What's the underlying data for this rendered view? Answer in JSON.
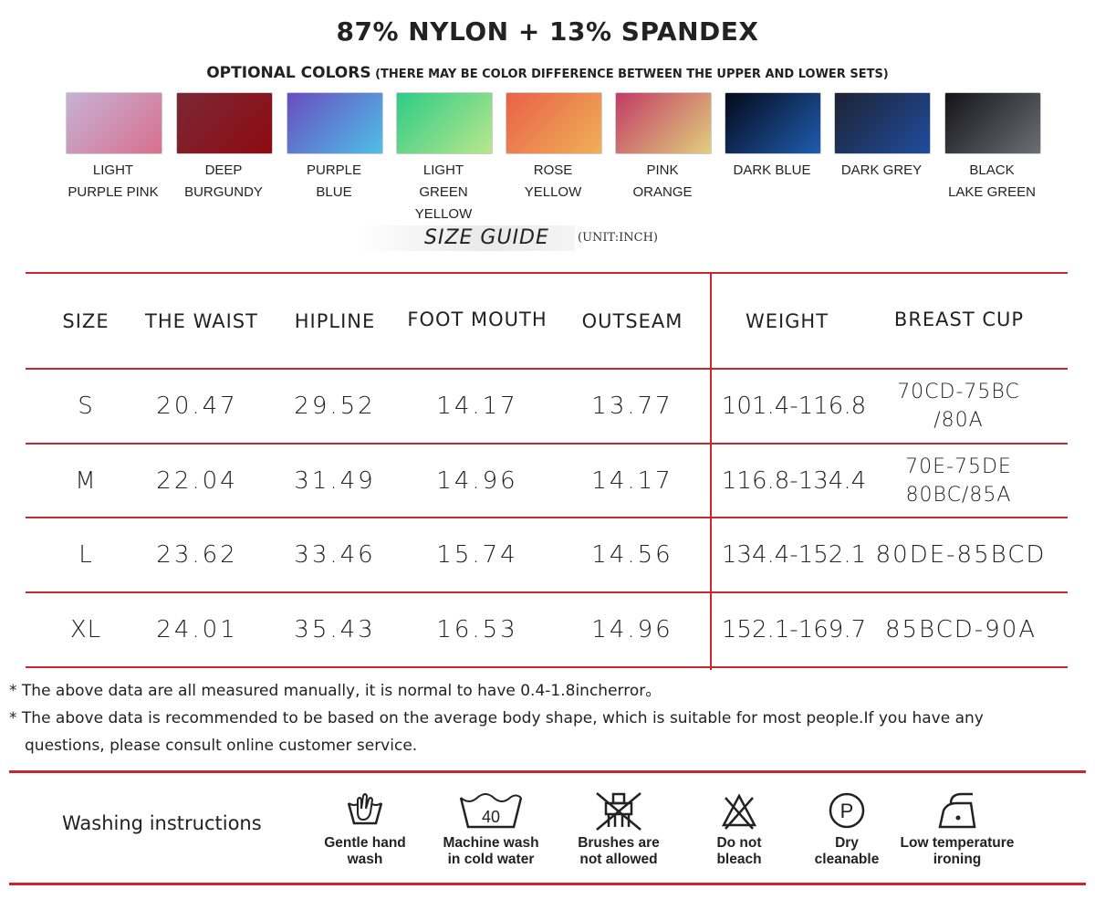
{
  "title": "87% NYLON + 13% SPANDEX",
  "colors": {
    "heading": "OPTIONAL COLORS",
    "note": " (THERE MAY BE COLOR DIFFERENCE BETWEEN THE UPPER AND LOWER SETS)",
    "items": [
      {
        "label": "LIGHT\nPURPLE PINK",
        "from": "#c6b2d6",
        "to": "#d8708e"
      },
      {
        "label": "DEEP\nBURGUNDY",
        "from": "#7a2836",
        "to": "#8e0a10"
      },
      {
        "label": "PURPLE\nBLUE",
        "from": "#6a4cc0",
        "to": "#4ec0e6"
      },
      {
        "label": "LIGHT\nGREEN YELLOW",
        "from": "#2ecb88",
        "to": "#b9e88c"
      },
      {
        "label": "ROSE\nYELLOW",
        "from": "#e96048",
        "to": "#f0b158"
      },
      {
        "label": "PINK\nORANGE",
        "from": "#c23c66",
        "to": "#e1cf7e"
      },
      {
        "label": "DARK BLUE",
        "from": "#05091a",
        "to": "#1f5cb0"
      },
      {
        "label": "DARK GREY",
        "from": "#1e2232",
        "to": "#1e4c9e"
      },
      {
        "label": "BLACK\nLAKE GREEN",
        "from": "#141418",
        "to": "#6c6e76"
      }
    ]
  },
  "size_guide": {
    "label": "SIZE GUIDE",
    "unit": "(UNIT:INCH)"
  },
  "table": {
    "headers": [
      "SIZE",
      "THE WAIST",
      "HIPLINE",
      "FOOT MOUTH",
      "OUTSEAM",
      "WEIGHT",
      "BREAST CUP"
    ],
    "rows": [
      [
        "S",
        "20.47",
        "29.52",
        "14.17",
        "13.77",
        "101.4-116.8",
        "70CD-75BC\n/80A"
      ],
      [
        "M",
        "22.04",
        "31.49",
        "14.96",
        "14.17",
        "116.8-134.4",
        "70E-75DE\n80BC/85A"
      ],
      [
        "L",
        "23.62",
        "33.46",
        "15.74",
        "14.56",
        "134.4-152.1",
        "80DE-85BCD"
      ],
      [
        "XL",
        "24.01",
        "35.43",
        "16.53",
        "14.96",
        "152.1-169.7",
        "85BCD-90A"
      ]
    ]
  },
  "notes": {
    "note1": "* The above data are all measured manually, it is normal to have 0.4-1.8incherror。",
    "note2_line1": "* The above data is recommended to be based on the average body shape, which is suitable for most people.If you have any",
    "note2_line2": "questions, please consult online customer service."
  },
  "washing": {
    "title": "Washing instructions",
    "items": [
      {
        "icon": "hand-wash-icon",
        "label": "Gentle hand\nwash"
      },
      {
        "icon": "machine-wash-40-icon",
        "label": "Machine wash\nin cold water",
        "temp": "40"
      },
      {
        "icon": "no-brush-icon",
        "label": "Brushes are\nnot allowed"
      },
      {
        "icon": "no-bleach-icon",
        "label": "Do not\nbleach"
      },
      {
        "icon": "dry-clean-p-icon",
        "label": "Dry\ncleanable",
        "letter": "P"
      },
      {
        "icon": "low-temp-iron-icon",
        "label": "Low temperature\nironing"
      }
    ]
  },
  "accent_color": "#c7272d"
}
